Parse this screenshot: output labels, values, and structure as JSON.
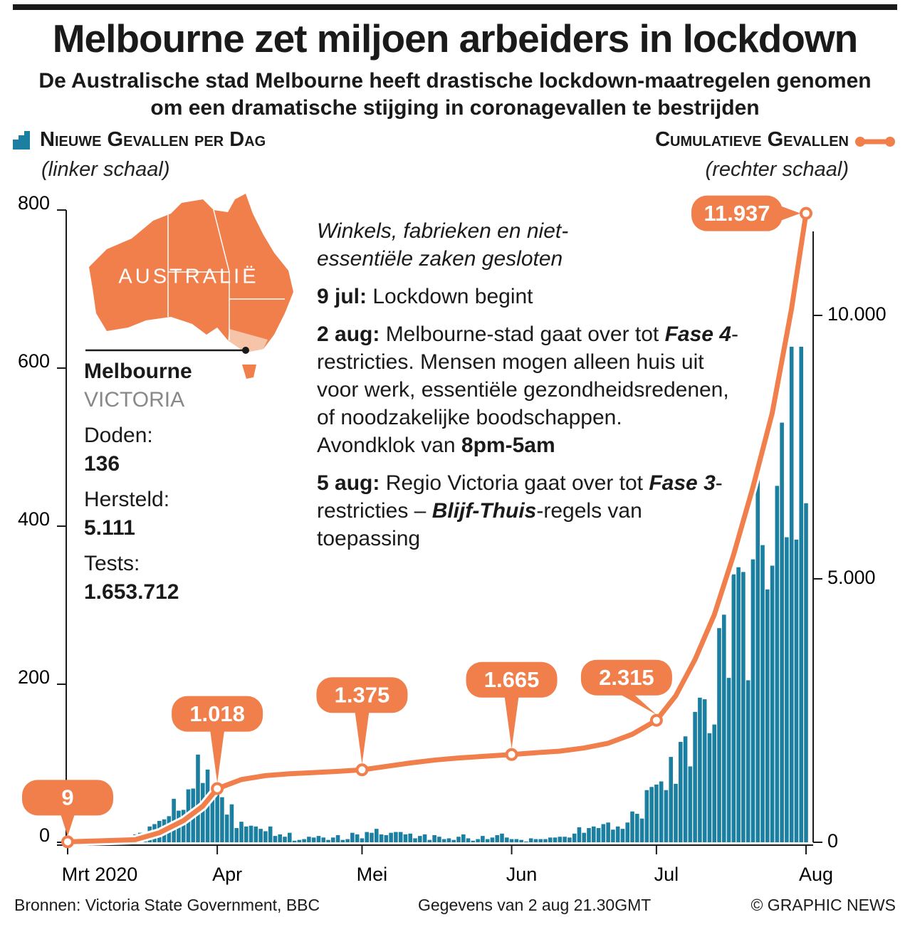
{
  "header": {
    "title": "Melbourne zet miljoen arbeiders in lockdown",
    "subtitle": "De Australische stad Melbourne heeft drastische lockdown-maatregelen genomen om een dramatische stijging in coronagevallen te bestrijden"
  },
  "chart_data": {
    "type": "combo",
    "xlim": [
      0,
      153
    ],
    "xticks": [
      {
        "value": 0,
        "label": "Mrt 2020"
      },
      {
        "value": 31,
        "label": "Apr"
      },
      {
        "value": 61,
        "label": "Mei"
      },
      {
        "value": 92,
        "label": "Jun"
      },
      {
        "value": 122,
        "label": "Jul"
      },
      {
        "value": 153,
        "label": "Aug"
      }
    ],
    "ylim": [
      0,
      800
    ],
    "yticks": [
      0,
      200,
      400,
      600,
      800
    ],
    "y2lim": [
      0,
      12000
    ],
    "y2ticks": [
      0,
      {
        "value": 5000,
        "label": "5.000"
      },
      {
        "value": 10000,
        "label": "10.000"
      }
    ],
    "series": [
      {
        "name": "Nieuwe Gevallen per Dag",
        "scale_note": "(linker schaal)",
        "type": "bar",
        "color": "#1a7fa0",
        "values": [
          0,
          0,
          0,
          0,
          0,
          1,
          0,
          1,
          2,
          3,
          1,
          4,
          0,
          3,
          10,
          12,
          6,
          20,
          23,
          27,
          29,
          33,
          55,
          40,
          41,
          67,
          68,
          111,
          75,
          92,
          67,
          62,
          57,
          35,
          48,
          18,
          26,
          20,
          21,
          20,
          17,
          14,
          20,
          8,
          10,
          7,
          12,
          2,
          3,
          4,
          7,
          6,
          8,
          6,
          3,
          6,
          9,
          3,
          4,
          12,
          10,
          5,
          13,
          12,
          17,
          10,
          9,
          12,
          13,
          13,
          10,
          11,
          5,
          8,
          10,
          3,
          9,
          7,
          4,
          5,
          3,
          7,
          10,
          5,
          2,
          4,
          8,
          4,
          6,
          9,
          11,
          6,
          4,
          4,
          3,
          1,
          5,
          4,
          4,
          4,
          6,
          6,
          7,
          7,
          6,
          11,
          19,
          12,
          18,
          20,
          18,
          23,
          25,
          16,
          20,
          17,
          25,
          39,
          36,
          30,
          66,
          70,
          73,
          77,
          66,
          108,
          74,
          127,
          134,
          96,
          165,
          183,
          181,
          138,
          149,
          271,
          288,
          208,
          339,
          348,
          342,
          205,
          358,
          467,
          376,
          320,
          350,
          451,
          531,
          386,
          627,
          383,
          627,
          429
        ]
      },
      {
        "name": "Cumulatieve Gevallen",
        "scale_note": "(rechter schaal)",
        "type": "line",
        "axis": "y2",
        "color": "#f07f4c",
        "x": [
          0,
          14,
          19,
          24,
          28,
          31,
          36,
          41,
          46,
          51,
          56,
          61,
          66,
          71,
          76,
          81,
          86,
          92,
          97,
          102,
          107,
          112,
          117,
          122,
          126,
          130,
          134,
          138,
          142,
          146,
          150,
          153
        ],
        "values": [
          9,
          49,
          180,
          411,
          685,
          1018,
          1191,
          1265,
          1301,
          1322,
          1346,
          1375,
          1440,
          1505,
          1560,
          1600,
          1630,
          1665,
          1700,
          1730,
          1790,
          1880,
          2050,
          2315,
          2780,
          3470,
          4320,
          5460,
          6740,
          8150,
          10130,
          11937
        ],
        "value_labels": [
          "9",
          null,
          null,
          null,
          null,
          "1.018",
          null,
          null,
          null,
          null,
          null,
          "1.375",
          null,
          null,
          null,
          null,
          null,
          "1.665",
          null,
          null,
          null,
          null,
          null,
          "2.315",
          null,
          null,
          null,
          null,
          null,
          null,
          null,
          "11.937"
        ]
      }
    ]
  },
  "info": {
    "region": "AUSTRALIË",
    "city": "Melbourne",
    "state": "VICTORIA",
    "stats": [
      {
        "label": "Doden:",
        "value": "136"
      },
      {
        "label": "Hersteld:",
        "value": "5.111"
      },
      {
        "label": "Tests:",
        "value": "1.653.712"
      }
    ]
  },
  "notes": [
    [
      [
        {
          "t": "Winkels, fabrieken en niet-essentiële zaken gesloten",
          "i": true
        }
      ]
    ],
    [
      [
        {
          "t": "9 jul:",
          "b": true
        },
        {
          "t": " Lockdown begint"
        }
      ]
    ],
    [
      [
        {
          "t": "2 aug:",
          "b": true
        },
        {
          "t": " Melbourne-stad gaat over tot "
        },
        {
          "t": "Fase 4",
          "b": true,
          "i": true
        },
        {
          "t": "-restricties. Mensen mogen alleen huis uit voor werk, essentiële gezondheidsredenen, of noodzakelijke boodschappen."
        }
      ],
      [
        {
          "t": "Avondklok van "
        },
        {
          "t": "8pm-5am",
          "b": true
        }
      ]
    ],
    [
      [
        {
          "t": "5 aug:",
          "b": true
        },
        {
          "t": " Regio Victoria gaat over tot "
        },
        {
          "t": "Fase 3",
          "b": true,
          "i": true
        },
        {
          "t": "-restricties – "
        },
        {
          "t": "Blijf-Thuis",
          "b": true,
          "i": true
        },
        {
          "t": "-regels van toepassing"
        }
      ]
    ]
  ],
  "footer": {
    "sources": "Bronnen: Victoria State Government, BBC",
    "date": "Gegevens van 2 aug 21.30GMT",
    "credit": "© GRAPHIC NEWS"
  }
}
